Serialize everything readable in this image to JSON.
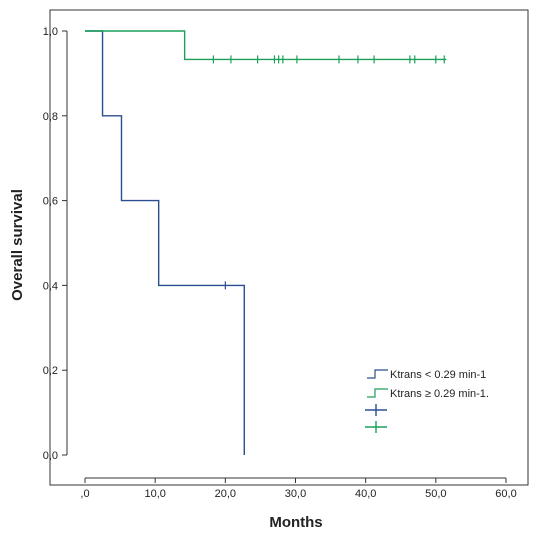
{
  "chart_data": {
    "type": "line",
    "xlabel": "Months",
    "ylabel": "Overall survival",
    "xlim": [
      0,
      60
    ],
    "ylim": [
      0,
      1
    ],
    "x_ticks": [
      ",0",
      "10,0",
      "20,0",
      "30,0",
      "40,0",
      "50,0",
      "60,0"
    ],
    "y_ticks": [
      "0,0",
      "0,2",
      "0,4",
      "0,6",
      "0,8",
      "1,0"
    ],
    "grid": false,
    "legend": "center-right",
    "series": [
      {
        "name": "Ktrans < 0.29 min-1",
        "color": "#2a4f8f",
        "steps": [
          [
            0,
            1.0
          ],
          [
            2.5,
            0.8
          ],
          [
            5.2,
            0.6
          ],
          [
            10.5,
            0.4
          ],
          [
            22.7,
            0.0
          ]
        ],
        "censored": [
          [
            20.0,
            0.4
          ]
        ]
      },
      {
        "name": "Ktrans ≥ 0.29 min-1.",
        "color": "#1aa05a",
        "steps": [
          [
            0,
            1.0
          ],
          [
            14.2,
            0.933
          ],
          [
            51.5,
            0.933
          ]
        ],
        "censored": [
          [
            18.3,
            0.933
          ],
          [
            20.8,
            0.933
          ],
          [
            24.6,
            0.933
          ],
          [
            27.0,
            0.933
          ],
          [
            27.6,
            0.933
          ],
          [
            28.2,
            0.933
          ],
          [
            30.2,
            0.933
          ],
          [
            36.2,
            0.933
          ],
          [
            38.9,
            0.933
          ],
          [
            41.2,
            0.933
          ],
          [
            46.3,
            0.933
          ],
          [
            47.0,
            0.933
          ],
          [
            50.0,
            0.933
          ],
          [
            51.2,
            0.933
          ]
        ]
      }
    ],
    "legend_entries": [
      "Ktrans < 0.29 min-1",
      "Ktrans ≥ 0.29 min-1."
    ]
  }
}
